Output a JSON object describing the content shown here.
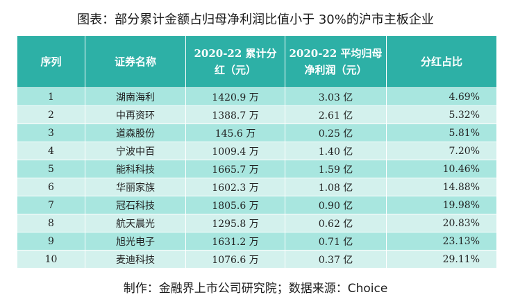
{
  "title": "图表：部分累计金额占归母净利润比值小于 30%的沪市主板企业",
  "table": {
    "headers": [
      "序列",
      "证券名称",
      "2020-22 累计分红（元）",
      "2020-22 平均归母净利润（元）",
      "分红占比"
    ],
    "rows": [
      [
        "1",
        "湖南海利",
        "1420.9 万",
        "3.03 亿",
        "4.69%"
      ],
      [
        "2",
        "中再资环",
        "1388.7 万",
        "2.61 亿",
        "5.32%"
      ],
      [
        "3",
        "道森股份",
        "145.6 万",
        "0.25 亿",
        "5.81%"
      ],
      [
        "4",
        "宁波中百",
        "1009.4 万",
        "1.40 亿",
        "7.20%"
      ],
      [
        "5",
        "能科科技",
        "1665.7 万",
        "1.59 亿",
        "10.46%"
      ],
      [
        "6",
        "华丽家族",
        "1602.3 万",
        "1.08 亿",
        "14.88%"
      ],
      [
        "7",
        "冠石科技",
        "1805.6 万",
        "0.90 亿",
        "19.98%"
      ],
      [
        "8",
        "航天晨光",
        "1295.8 万",
        "0.62 亿",
        "20.83%"
      ],
      [
        "9",
        "旭光电子",
        "1631.2 万",
        "0.71 亿",
        "23.13%"
      ],
      [
        "10",
        "麦迪科技",
        "1076.6 万",
        "0.37 亿",
        "29.11%"
      ]
    ]
  },
  "footer": "制作：金融界上市公司研究院；数据来源：Choice",
  "colors": {
    "header_bg": "#2db0a6",
    "row_odd": "#a8e6df",
    "row_even": "#d3f1ed"
  }
}
